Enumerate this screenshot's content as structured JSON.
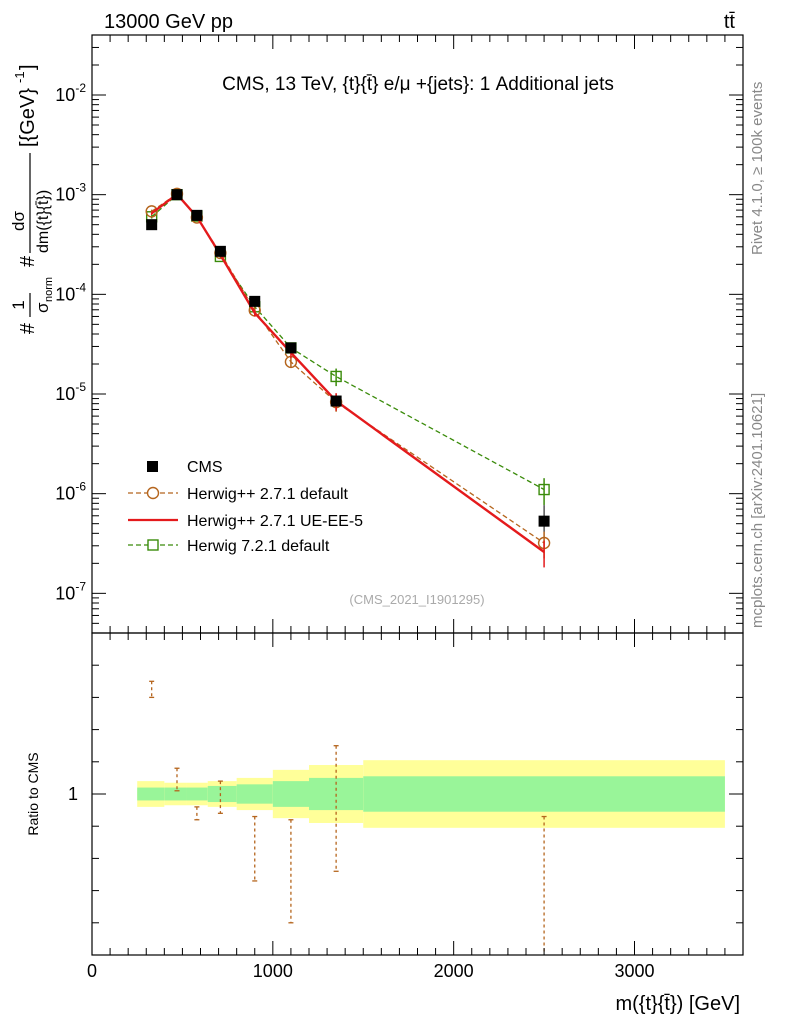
{
  "header": {
    "process": "13000 GeV pp",
    "particle": "tt̄"
  },
  "side_labels": {
    "rivet": "Rivet 4.1.0, ≥ 100k events",
    "source": "mcplots.cern.ch [arXiv:2401.10621]"
  },
  "chart_data": [
    {
      "type": "line",
      "panel": "main",
      "title": "CMS, 13 TeV, {t}{t̄} e/μ +{jets}: 1 Additional jets",
      "ylabel": "#1/σnorm #dσ/dm({t}{t̄}) [{GeV}-1]",
      "ylabel_parts": {
        "one": "1",
        "norm": "σ",
        "norm_sub": "norm",
        "diff": "dσ",
        "den": "dm({t}{t̄})",
        "prefix": "#",
        "unit": "[{GeV}",
        "unit_exp": "-1",
        "unit_close": "]"
      },
      "yscale": "log",
      "ylim": [
        4e-08,
        0.04
      ],
      "xlim": [
        0,
        3600
      ],
      "y_ticks": [
        {
          "value": 1e-07,
          "base": "10",
          "exp": "-7"
        },
        {
          "value": 1e-06,
          "base": "10",
          "exp": "-6"
        },
        {
          "value": 1e-05,
          "base": "10",
          "exp": "-5"
        },
        {
          "value": 0.0001,
          "base": "10",
          "exp": "-4"
        },
        {
          "value": 0.001,
          "base": "10",
          "exp": "-3"
        },
        {
          "value": 0.01,
          "base": "10",
          "exp": "-2"
        }
      ],
      "watermark": "(CMS_2021_I1901295)",
      "legend_position": "lower-left",
      "x": [
        330,
        470,
        580,
        710,
        900,
        1100,
        1350,
        2500
      ],
      "series": [
        {
          "name": "CMS",
          "marker": "filled-square",
          "color": "#000000",
          "values": [
            0.0005,
            0.001,
            0.00062,
            0.00027,
            8.5e-05,
            2.9e-05,
            8.5e-06,
            5.3e-07
          ]
        },
        {
          "name": "Herwig++ 2.7.1 default",
          "marker": "open-circle",
          "line": "dashed",
          "color": "#b5651d",
          "values": [
            0.00068,
            0.00102,
            0.00059,
            0.00026,
            6.9e-05,
            2.1e-05,
            8.3e-06,
            3.2e-07
          ]
        },
        {
          "name": "Herwig++ 2.7.1 UE-EE-5",
          "marker": "none",
          "line": "solid",
          "color": "#e41a1c",
          "values": [
            0.00065,
            0.00101,
            0.0006,
            0.00025,
            6.5e-05,
            2.6e-05,
            8.5e-06,
            2.6e-07
          ]
        },
        {
          "name": "Herwig 7.2.1 default",
          "marker": "open-square",
          "line": "dashed",
          "color": "#3a8b0a",
          "values": [
            0.0006,
            0.001,
            0.00061,
            0.00024,
            7.5e-05,
            2.9e-05,
            1.5e-05,
            1.1e-06
          ]
        }
      ]
    },
    {
      "type": "line",
      "panel": "ratio",
      "ylabel": "Ratio to CMS",
      "xlabel": "m({t}{t̄}) [GeV]",
      "xlabel_parts": {
        "m": "m({t}{",
        "tbar": "t̄",
        "close": "}) [GeV]"
      },
      "ylim": [
        0.5,
        1.5
      ],
      "xlim": [
        0,
        3600
      ],
      "y_tick_labels": [
        {
          "value": 1,
          "label": "1"
        }
      ],
      "x_tick_labels": [
        {
          "value": 0,
          "label": "0"
        },
        {
          "value": 1000,
          "label": "1000"
        },
        {
          "value": 2000,
          "label": "2000"
        },
        {
          "value": 3000,
          "label": "3000"
        }
      ],
      "bins": [
        {
          "lo": 250,
          "hi": 400,
          "stat": 0.02,
          "total": 0.04
        },
        {
          "lo": 400,
          "hi": 520,
          "stat": 0.02,
          "total": 0.035
        },
        {
          "lo": 520,
          "hi": 640,
          "stat": 0.02,
          "total": 0.035
        },
        {
          "lo": 640,
          "hi": 800,
          "stat": 0.025,
          "total": 0.04
        },
        {
          "lo": 800,
          "hi": 1000,
          "stat": 0.03,
          "total": 0.05
        },
        {
          "lo": 1000,
          "hi": 1200,
          "stat": 0.04,
          "total": 0.075
        },
        {
          "lo": 1200,
          "hi": 1500,
          "stat": 0.05,
          "total": 0.09
        },
        {
          "lo": 1500,
          "hi": 3500,
          "stat": 0.055,
          "total": 0.105
        }
      ],
      "ratio_errorbars": [
        {
          "x": 330,
          "lo": 1.3,
          "hi": 1.35
        },
        {
          "x": 470,
          "lo": 1.01,
          "hi": 1.08
        },
        {
          "x": 580,
          "lo": 0.92,
          "hi": 0.96
        },
        {
          "x": 710,
          "lo": 0.94,
          "hi": 1.04
        },
        {
          "x": 900,
          "lo": 0.73,
          "hi": 0.93
        },
        {
          "x": 1100,
          "lo": 0.6,
          "hi": 0.92
        },
        {
          "x": 1350,
          "lo": 0.76,
          "hi": 1.15
        },
        {
          "x": 2500,
          "lo": 0.5,
          "hi": 0.93
        }
      ]
    }
  ]
}
